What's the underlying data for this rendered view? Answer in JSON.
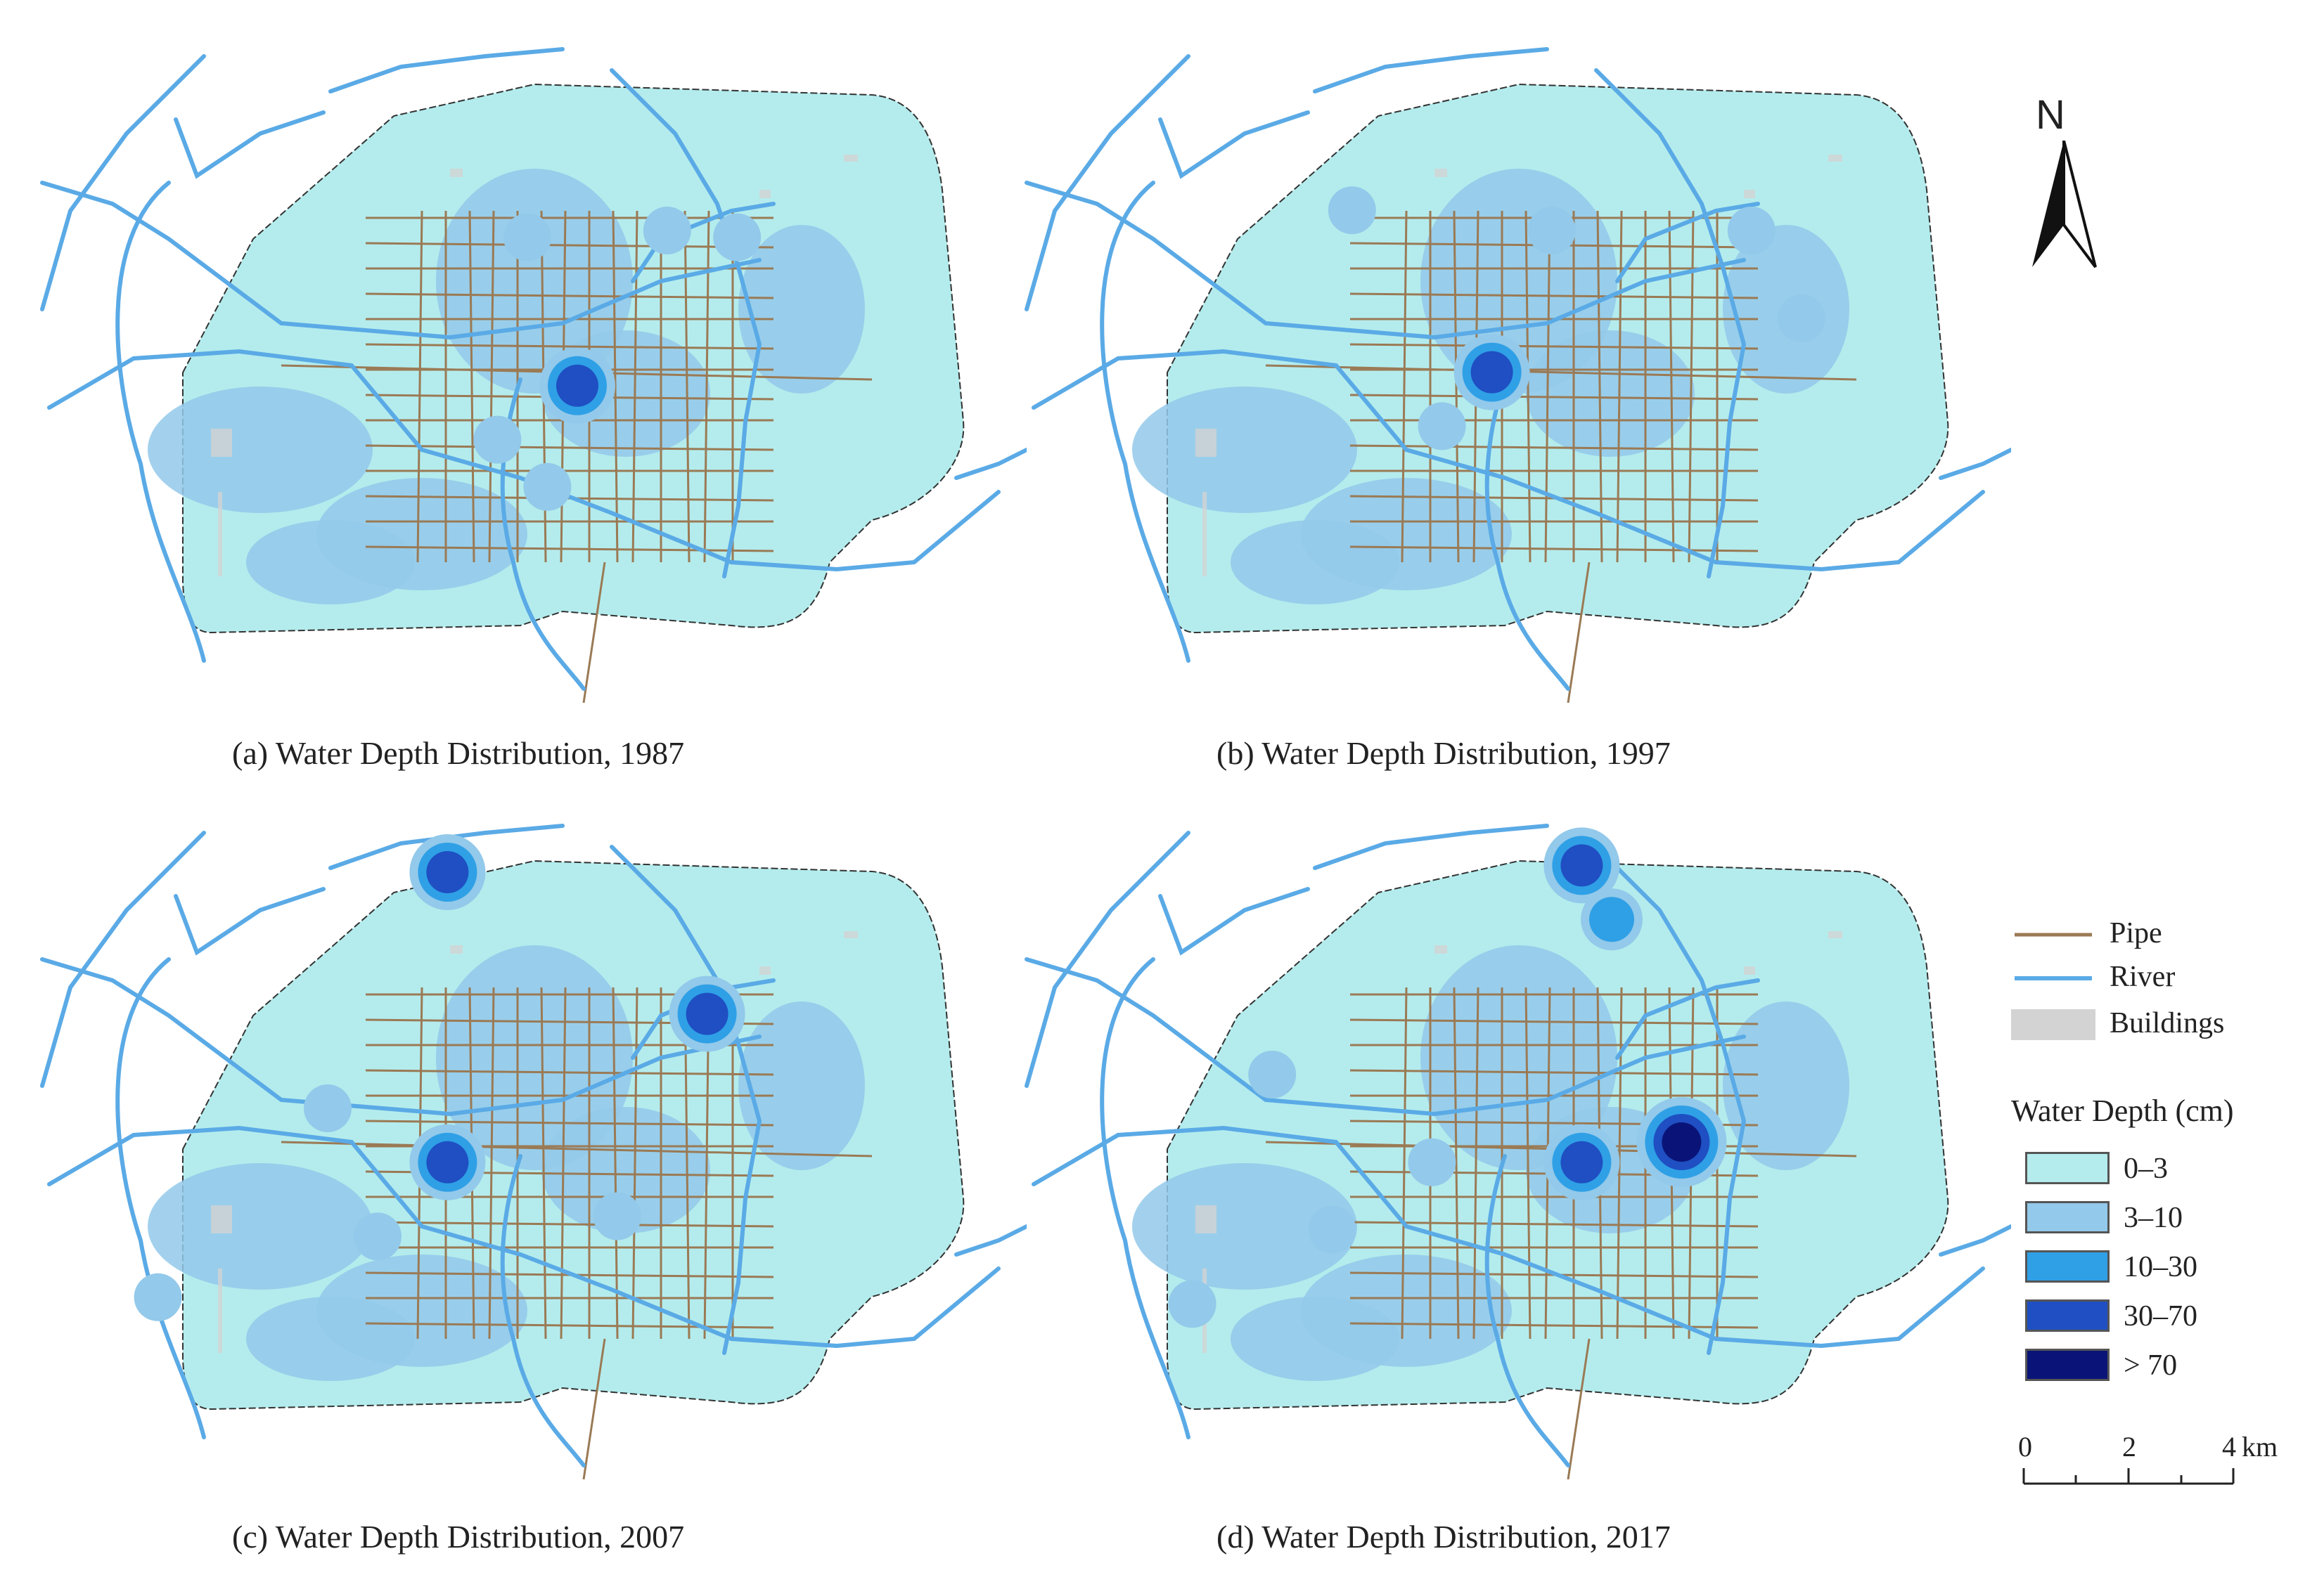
{
  "panels": [
    {
      "id": "a",
      "caption": "(a) Water Depth Distribution, 1987"
    },
    {
      "id": "b",
      "caption": "(b) Water Depth Distribution, 1997"
    },
    {
      "id": "c",
      "caption": "(c) Water Depth Distribution, 2007"
    },
    {
      "id": "d",
      "caption": "(d) Water Depth Distribution, 2017"
    }
  ],
  "north_arrow": {
    "label": "N"
  },
  "legend": {
    "line_items": [
      {
        "label": "Pipe",
        "color": "#9a7a55"
      },
      {
        "label": "River",
        "color": "#5aaae6"
      },
      {
        "label": "Buildings",
        "color": "#d3d3d3"
      }
    ],
    "depth_title": "Water Depth (cm)",
    "depth_classes": [
      {
        "label": "0–3",
        "color": "#b4eced"
      },
      {
        "label": "3–10",
        "color": "#93c9ea"
      },
      {
        "label": "10–30",
        "color": "#2fa0e6"
      },
      {
        "label": "30–70",
        "color": "#1f4fc2"
      },
      {
        "label": "> 70",
        "color": "#0a1478"
      }
    ]
  },
  "scale_bar": {
    "ticks": [
      "0",
      "2",
      "4"
    ],
    "unit": "km"
  },
  "hotspots": {
    "a": [
      [
        0.55,
        0.53,
        3
      ],
      [
        0.47,
        0.61,
        1
      ],
      [
        0.64,
        0.3,
        1
      ],
      [
        0.5,
        0.31,
        1
      ],
      [
        0.71,
        0.31,
        1
      ],
      [
        0.52,
        0.68,
        1
      ]
    ],
    "b": [
      [
        0.48,
        0.51,
        3
      ],
      [
        0.34,
        0.27,
        1
      ],
      [
        0.54,
        0.3,
        1
      ],
      [
        0.74,
        0.3,
        1
      ],
      [
        0.43,
        0.59,
        1
      ],
      [
        0.79,
        0.43,
        1
      ]
    ],
    "c": [
      [
        0.42,
        0.1,
        3
      ],
      [
        0.42,
        0.53,
        3
      ],
      [
        0.68,
        0.31,
        3
      ],
      [
        0.3,
        0.45,
        1
      ],
      [
        0.35,
        0.64,
        1
      ],
      [
        0.59,
        0.61,
        1
      ],
      [
        0.13,
        0.73,
        1
      ]
    ],
    "d": [
      [
        0.57,
        0.09,
        3
      ],
      [
        0.6,
        0.17,
        2
      ],
      [
        0.67,
        0.5,
        4
      ],
      [
        0.57,
        0.53,
        3
      ],
      [
        0.42,
        0.53,
        1
      ],
      [
        0.32,
        0.63,
        1
      ],
      [
        0.18,
        0.74,
        1
      ],
      [
        0.26,
        0.4,
        1
      ]
    ]
  }
}
